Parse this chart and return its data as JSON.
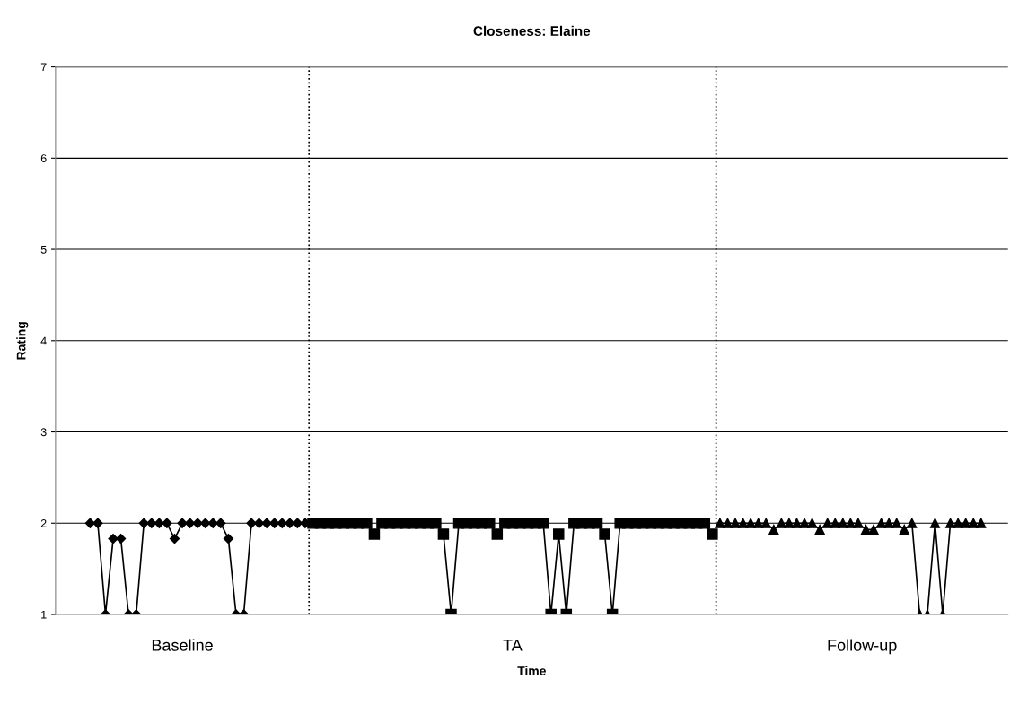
{
  "chart_data": {
    "type": "line",
    "title": "Closeness: Elaine",
    "xlabel": "Time",
    "ylabel": "Rating",
    "categories": [
      null,
      null,
      null,
      null,
      null,
      null,
      null,
      null,
      null,
      null,
      null,
      null,
      null,
      null,
      null,
      null,
      null,
      null,
      null,
      null,
      null,
      null,
      null,
      null,
      null,
      null,
      null,
      null,
      null,
      null,
      null,
      null,
      null,
      null,
      null,
      null,
      null,
      null,
      null,
      null,
      null,
      null,
      null,
      null,
      null,
      null,
      null,
      null,
      null,
      null,
      null,
      null,
      null,
      null,
      null,
      null,
      null,
      null,
      null,
      null,
      null,
      null,
      null,
      null,
      null,
      null,
      null,
      null,
      null,
      null,
      null,
      null,
      null,
      null,
      null,
      null,
      null,
      null,
      null,
      null,
      null,
      null,
      null,
      null,
      null,
      null,
      null,
      null,
      null,
      null,
      null,
      null,
      null,
      null,
      null,
      null,
      null,
      null,
      null,
      null,
      null,
      null,
      null,
      null,
      null,
      null,
      null,
      null,
      null,
      null,
      null,
      null,
      null,
      null,
      null,
      null,
      null,
      null,
      null,
      null,
      null,
      null,
      null,
      null
    ],
    "series": [
      {
        "color": "#000000",
        "marker": "diamond",
        "values": [
          null,
          null,
          null,
          null,
          2,
          2,
          1,
          1.83,
          1.83,
          1,
          1,
          2,
          2,
          2,
          2,
          1.83,
          2,
          2,
          2,
          2,
          2,
          2,
          1.83,
          1,
          1,
          2,
          2,
          2,
          2,
          2,
          2,
          2,
          2,
          null,
          null,
          null,
          null,
          null,
          null,
          null,
          null,
          null,
          null,
          null,
          null,
          null,
          null,
          null,
          null,
          null,
          null,
          null,
          null,
          null,
          null,
          null,
          null,
          null,
          null,
          null,
          null,
          null,
          null,
          null,
          null,
          null,
          null,
          null,
          null,
          null,
          null,
          null,
          null,
          null,
          null,
          null,
          null,
          null,
          null,
          null,
          null,
          null,
          null,
          null,
          null,
          null,
          null,
          null,
          null,
          null,
          null,
          null,
          null,
          null,
          null,
          null,
          null,
          null,
          null,
          null,
          null,
          null,
          null,
          null,
          null,
          null,
          null,
          null,
          null,
          null,
          null,
          null,
          null,
          null,
          null,
          null,
          null,
          null,
          null,
          null,
          null,
          null,
          null,
          null
        ]
      },
      {
        "color": "#000000",
        "marker": "square",
        "values": [
          null,
          null,
          null,
          null,
          null,
          null,
          null,
          null,
          null,
          null,
          null,
          null,
          null,
          null,
          null,
          null,
          null,
          null,
          null,
          null,
          null,
          null,
          null,
          null,
          null,
          null,
          null,
          null,
          null,
          null,
          null,
          null,
          null,
          2,
          2,
          2,
          2,
          2,
          2,
          2,
          2,
          1.88,
          2,
          2,
          2,
          2,
          2,
          2,
          2,
          2,
          1.88,
          1,
          2,
          2,
          2,
          2,
          2,
          1.88,
          2,
          2,
          2,
          2,
          2,
          2,
          1,
          1.88,
          1,
          2,
          2,
          2,
          2,
          1.88,
          1,
          2,
          2,
          2,
          2,
          2,
          2,
          2,
          2,
          2,
          2,
          2,
          2,
          1.88,
          null,
          null,
          null,
          null,
          null,
          null,
          null,
          null,
          null,
          null,
          null,
          null,
          null,
          null,
          null,
          null,
          null,
          null,
          null,
          null,
          null,
          null,
          null,
          null,
          null,
          null,
          null,
          null,
          null,
          null,
          null,
          null,
          null,
          null,
          null,
          null,
          null,
          null
        ]
      },
      {
        "color": "#000000",
        "marker": "triangle",
        "values": [
          null,
          null,
          null,
          null,
          null,
          null,
          null,
          null,
          null,
          null,
          null,
          null,
          null,
          null,
          null,
          null,
          null,
          null,
          null,
          null,
          null,
          null,
          null,
          null,
          null,
          null,
          null,
          null,
          null,
          null,
          null,
          null,
          null,
          null,
          null,
          null,
          null,
          null,
          null,
          null,
          null,
          null,
          null,
          null,
          null,
          null,
          null,
          null,
          null,
          null,
          null,
          null,
          null,
          null,
          null,
          null,
          null,
          null,
          null,
          null,
          null,
          null,
          null,
          null,
          null,
          null,
          null,
          null,
          null,
          null,
          null,
          null,
          null,
          null,
          null,
          null,
          null,
          null,
          null,
          null,
          null,
          null,
          null,
          null,
          null,
          null,
          2,
          2,
          2,
          2,
          2,
          2,
          2,
          1.93,
          2,
          2,
          2,
          2,
          2,
          1.93,
          2,
          2,
          2,
          2,
          2,
          1.93,
          1.93,
          2,
          2,
          2,
          1.93,
          2,
          1,
          1,
          2,
          1,
          2,
          2,
          2,
          2,
          2,
          null,
          null,
          null
        ]
      }
    ],
    "annotations": [
      "Baseline",
      "TA",
      "Follow-up"
    ],
    "ylim": [
      1,
      7
    ],
    "yticks": [
      1,
      2,
      3,
      4,
      5,
      6,
      7
    ],
    "grid": "y",
    "line_style": "solid"
  }
}
